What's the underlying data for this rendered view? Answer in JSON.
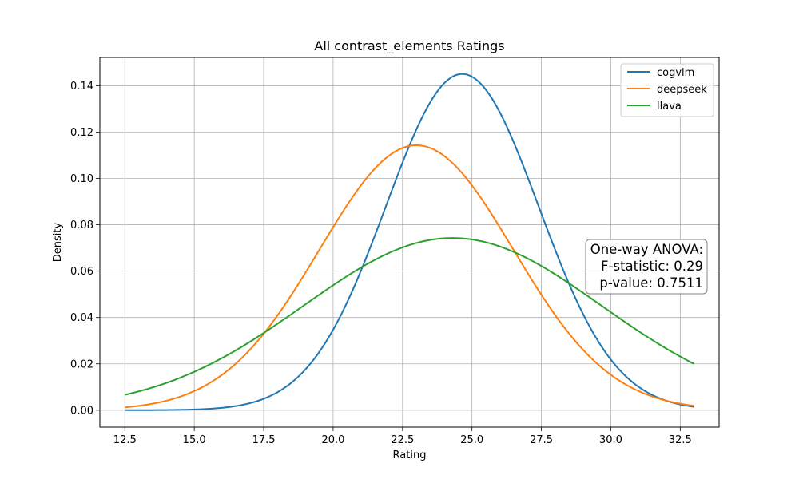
{
  "chart_data": {
    "type": "line",
    "title": "All contrast_elements Ratings",
    "xlabel": "Rating",
    "ylabel": "Density",
    "xlim": [
      11.6,
      33.9
    ],
    "ylim": [
      -0.0073,
      0.1522
    ],
    "xticks": [
      12.5,
      15.0,
      17.5,
      20.0,
      22.5,
      25.0,
      27.5,
      30.0,
      32.5
    ],
    "xtick_labels": [
      "12.5",
      "15.0",
      "17.5",
      "20.0",
      "22.5",
      "25.0",
      "27.5",
      "30.0",
      "32.5"
    ],
    "yticks": [
      0.0,
      0.02,
      0.04,
      0.06,
      0.08,
      0.1,
      0.12,
      0.14
    ],
    "ytick_labels": [
      "0.00",
      "0.02",
      "0.04",
      "0.06",
      "0.08",
      "0.10",
      "0.12",
      "0.14"
    ],
    "grid": true,
    "legend_position": "top-right",
    "x_range": [
      12.5,
      33.0
    ],
    "series": [
      {
        "name": "cogvlm",
        "color": "#1f77b4",
        "distribution": "normal",
        "mean": 24.65,
        "std": 2.75
      },
      {
        "name": "deepseek",
        "color": "#ff7f0e",
        "distribution": "normal",
        "mean": 23.0,
        "std": 3.49
      },
      {
        "name": "llava",
        "color": "#2ca02c",
        "distribution": "normal",
        "mean": 24.3,
        "std": 5.37
      }
    ],
    "annotation": {
      "lines": [
        "One-way ANOVA:",
        "F-statistic: 0.29",
        "p-value: 0.7511"
      ],
      "position": "right-middle"
    }
  }
}
